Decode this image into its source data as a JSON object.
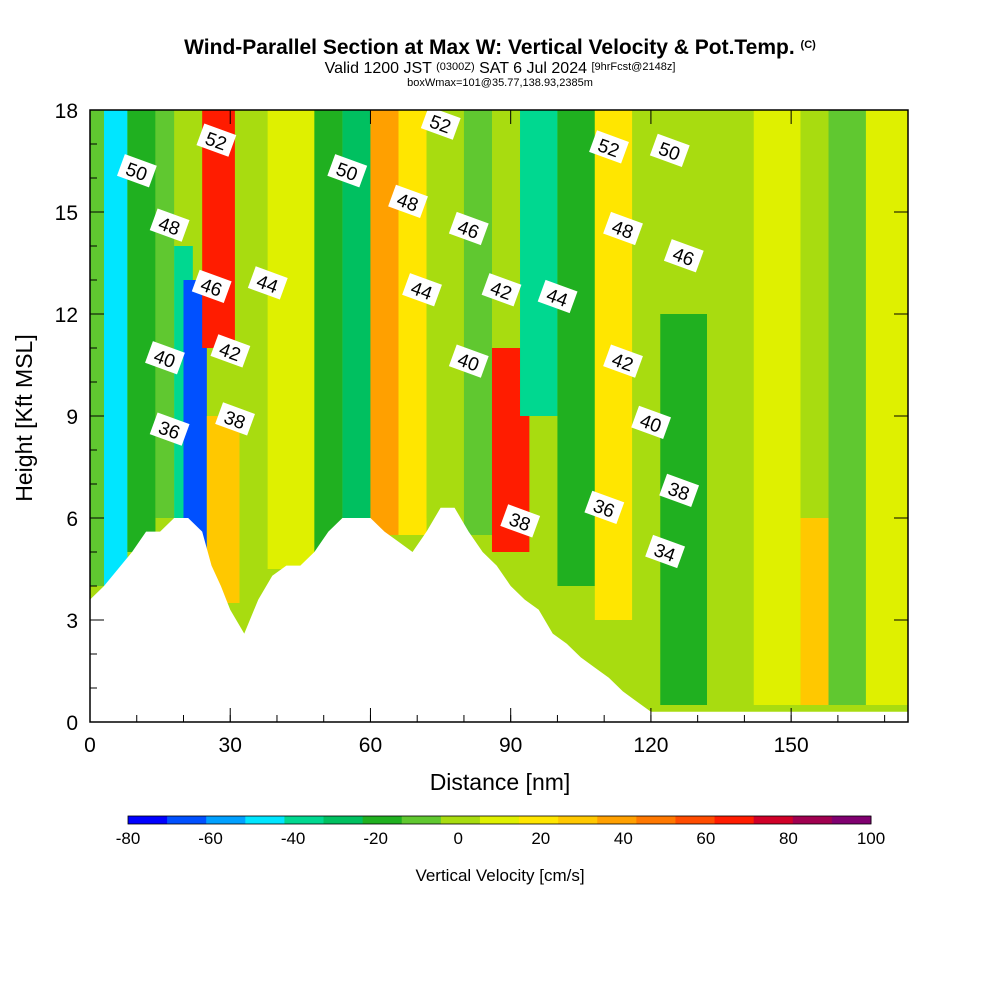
{
  "header": {
    "title": "Wind-Parallel Section at Max W: Vertical Velocity & Pot.Temp.",
    "title_mark": "(C)",
    "valid_a": "Valid 1200 JST",
    "valid_utc": "(0300Z)",
    "valid_b": "SAT 6 Jul 2024",
    "fcst": "[9hrFcst@2148z]",
    "box": "boxWmax=101@35.77,138.93,2385m"
  },
  "chart_data": {
    "type": "heatmap",
    "xlabel": "Distance [nm]",
    "ylabel": "Height [Kft MSL]",
    "xlim": [
      0,
      175
    ],
    "ylim": [
      0,
      18
    ],
    "x_ticks": [
      "0",
      "30",
      "60",
      "90",
      "120",
      "150"
    ],
    "x_tick_values": [
      0,
      30,
      60,
      90,
      120,
      150
    ],
    "y_ticks": [
      "0",
      "3",
      "6",
      "9",
      "12",
      "15",
      "18"
    ],
    "y_tick_values": [
      0,
      3,
      6,
      9,
      12,
      15,
      18
    ],
    "colorbar": {
      "title": "Vertical Velocity [cm/s]",
      "labels": [
        "-80",
        "-60",
        "-40",
        "-20",
        "0",
        "20",
        "40",
        "60",
        "80",
        "100"
      ],
      "range": [
        -80,
        100
      ],
      "colors": [
        "#0000ff",
        "#0050ff",
        "#00a0ff",
        "#00e6ff",
        "#00d890",
        "#00c060",
        "#20b020",
        "#60c830",
        "#a8dc10",
        "#dff000",
        "#ffe600",
        "#ffc800",
        "#ffa000",
        "#ff7800",
        "#ff4c00",
        "#ff1c00",
        "#d00028",
        "#a00050",
        "#800070"
      ]
    },
    "vertical_velocity_cells": [
      {
        "x": [
          0,
          5
        ],
        "y": [
          4,
          18
        ],
        "w": -10
      },
      {
        "x": [
          3,
          8
        ],
        "y": [
          4,
          18
        ],
        "w": -45
      },
      {
        "x": [
          8,
          14
        ],
        "y": [
          5,
          18
        ],
        "w": -15
      },
      {
        "x": [
          14,
          18
        ],
        "y": [
          6,
          18
        ],
        "w": -5
      },
      {
        "x": [
          18,
          22
        ],
        "y": [
          6,
          14
        ],
        "w": -40
      },
      {
        "x": [
          20,
          25
        ],
        "y": [
          4.5,
          13
        ],
        "w": -65
      },
      {
        "x": [
          25,
          32
        ],
        "y": [
          3.5,
          9
        ],
        "w": 25
      },
      {
        "x": [
          24,
          31
        ],
        "y": [
          11,
          18
        ],
        "w": 70
      },
      {
        "x": [
          32,
          38
        ],
        "y": [
          3,
          18
        ],
        "w": 5
      },
      {
        "x": [
          38,
          48
        ],
        "y": [
          4.5,
          18
        ],
        "w": 10
      },
      {
        "x": [
          48,
          54
        ],
        "y": [
          5,
          18
        ],
        "w": -15
      },
      {
        "x": [
          54,
          60
        ],
        "y": [
          6,
          18
        ],
        "w": -25
      },
      {
        "x": [
          60,
          66
        ],
        "y": [
          5.5,
          18
        ],
        "w": 35
      },
      {
        "x": [
          66,
          72
        ],
        "y": [
          5.5,
          18
        ],
        "w": 20
      },
      {
        "x": [
          72,
          80
        ],
        "y": [
          6,
          18
        ],
        "w": 5
      },
      {
        "x": [
          80,
          86
        ],
        "y": [
          5.5,
          18
        ],
        "w": -10
      },
      {
        "x": [
          86,
          94
        ],
        "y": [
          5,
          11
        ],
        "w": 70
      },
      {
        "x": [
          92,
          100
        ],
        "y": [
          9,
          18
        ],
        "w": -35
      },
      {
        "x": [
          100,
          108
        ],
        "y": [
          4,
          18
        ],
        "w": -15
      },
      {
        "x": [
          108,
          116
        ],
        "y": [
          3,
          18
        ],
        "w": 20
      },
      {
        "x": [
          116,
          122
        ],
        "y": [
          2,
          18
        ],
        "w": 5
      },
      {
        "x": [
          122,
          132
        ],
        "y": [
          0.5,
          12
        ],
        "w": -15
      },
      {
        "x": [
          132,
          142
        ],
        "y": [
          0.5,
          18
        ],
        "w": 0
      },
      {
        "x": [
          142,
          152
        ],
        "y": [
          0.5,
          18
        ],
        "w": 8
      },
      {
        "x": [
          152,
          158
        ],
        "y": [
          0.5,
          6
        ],
        "w": 25
      },
      {
        "x": [
          158,
          166
        ],
        "y": [
          0.5,
          18
        ],
        "w": -5
      },
      {
        "x": [
          166,
          175
        ],
        "y": [
          0.5,
          18
        ],
        "w": 10
      }
    ],
    "terrain_height_kft": [
      [
        0,
        3.6
      ],
      [
        3,
        4.0
      ],
      [
        6,
        4.5
      ],
      [
        9,
        5.0
      ],
      [
        12,
        5.6
      ],
      [
        15,
        5.6
      ],
      [
        18,
        6.0
      ],
      [
        21,
        6.0
      ],
      [
        24,
        5.6
      ],
      [
        26,
        4.6
      ],
      [
        28,
        4.0
      ],
      [
        30,
        3.3
      ],
      [
        33,
        2.6
      ],
      [
        36,
        3.6
      ],
      [
        39,
        4.3
      ],
      [
        42,
        4.6
      ],
      [
        45,
        4.6
      ],
      [
        48,
        5.0
      ],
      [
        51,
        5.6
      ],
      [
        54,
        6.0
      ],
      [
        57,
        6.0
      ],
      [
        60,
        6.0
      ],
      [
        63,
        5.6
      ],
      [
        66,
        5.3
      ],
      [
        69,
        5.0
      ],
      [
        72,
        5.6
      ],
      [
        75,
        6.3
      ],
      [
        78,
        6.3
      ],
      [
        81,
        5.6
      ],
      [
        84,
        5.0
      ],
      [
        87,
        4.6
      ],
      [
        90,
        4.0
      ],
      [
        93,
        3.6
      ],
      [
        96,
        3.3
      ],
      [
        99,
        2.6
      ],
      [
        102,
        2.3
      ],
      [
        105,
        1.9
      ],
      [
        108,
        1.6
      ],
      [
        111,
        1.3
      ],
      [
        114,
        0.9
      ],
      [
        117,
        0.6
      ],
      [
        120,
        0.3
      ],
      [
        123,
        0.3
      ],
      [
        175,
        0.3
      ]
    ],
    "potential_temperature_contours": [
      {
        "label": "34",
        "label_x": 123,
        "label_y": 5.0
      },
      {
        "label": "36",
        "label_x": 17,
        "label_y": 8.6
      },
      {
        "label": "36",
        "label_x": 110,
        "label_y": 6.3
      },
      {
        "label": "38",
        "label_x": 31,
        "label_y": 8.9
      },
      {
        "label": "38",
        "label_x": 92,
        "label_y": 5.9
      },
      {
        "label": "38",
        "label_x": 126,
        "label_y": 6.8
      },
      {
        "label": "40",
        "label_x": 16,
        "label_y": 10.7
      },
      {
        "label": "40",
        "label_x": 81,
        "label_y": 10.6
      },
      {
        "label": "40",
        "label_x": 120,
        "label_y": 8.8
      },
      {
        "label": "42",
        "label_x": 30,
        "label_y": 10.9
      },
      {
        "label": "42",
        "label_x": 88,
        "label_y": 12.7
      },
      {
        "label": "42",
        "label_x": 114,
        "label_y": 10.6
      },
      {
        "label": "44",
        "label_x": 38,
        "label_y": 12.9
      },
      {
        "label": "44",
        "label_x": 71,
        "label_y": 12.7
      },
      {
        "label": "44",
        "label_x": 100,
        "label_y": 12.5
      },
      {
        "label": "46",
        "label_x": 26,
        "label_y": 12.8
      },
      {
        "label": "46",
        "label_x": 81,
        "label_y": 14.5
      },
      {
        "label": "46",
        "label_x": 127,
        "label_y": 13.7
      },
      {
        "label": "48",
        "label_x": 17,
        "label_y": 14.6
      },
      {
        "label": "48",
        "label_x": 68,
        "label_y": 15.3
      },
      {
        "label": "48",
        "label_x": 114,
        "label_y": 14.5
      },
      {
        "label": "50",
        "label_x": 10,
        "label_y": 16.2
      },
      {
        "label": "50",
        "label_x": 55,
        "label_y": 16.2
      },
      {
        "label": "50",
        "label_x": 124,
        "label_y": 16.8
      },
      {
        "label": "52",
        "label_x": 27,
        "label_y": 17.1
      },
      {
        "label": "52",
        "label_x": 75,
        "label_y": 17.6
      },
      {
        "label": "52",
        "label_x": 111,
        "label_y": 16.9
      }
    ]
  }
}
